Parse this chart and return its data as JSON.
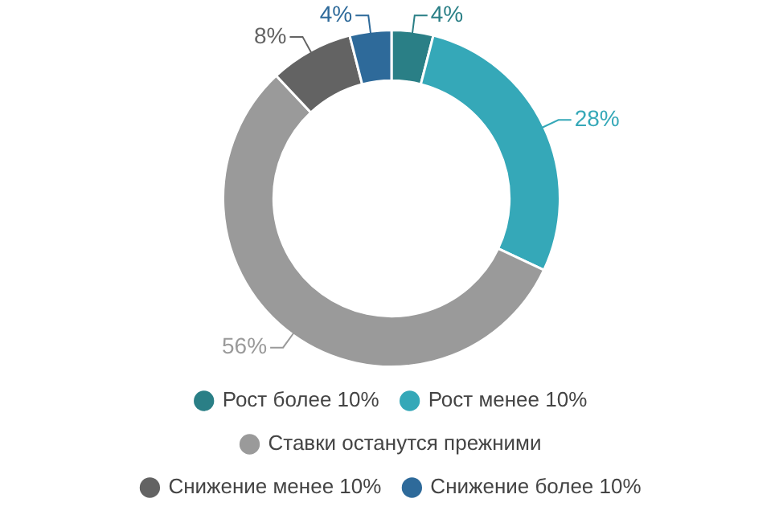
{
  "chart_data": {
    "type": "donut",
    "categories": [
      "Рост более 10%",
      "Рост менее 10%",
      "Ставки останутся прежними",
      "Снижение менее 10%",
      "Снижение более 10%"
    ],
    "values": [
      4,
      28,
      56,
      8,
      4
    ],
    "colors": [
      "#2a7f86",
      "#35a8b8",
      "#9a9a9a",
      "#636363",
      "#2e6a9a"
    ],
    "value_labels": [
      "4%",
      "28%",
      "56%",
      "8%",
      "4%"
    ],
    "legend": "bottom"
  }
}
